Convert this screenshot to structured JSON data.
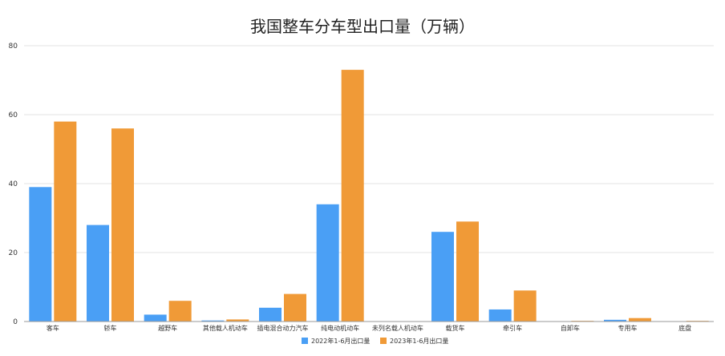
{
  "chart_data": {
    "type": "bar",
    "title": "我国整车分车型出口量（万辆）",
    "xlabel": "",
    "ylabel": "",
    "ylim": [
      0,
      80
    ],
    "yticks": [
      0,
      20,
      40,
      60,
      80
    ],
    "grid": true,
    "legend_position": "bottom",
    "categories": [
      "客车",
      "轿车",
      "越野车",
      "其他载人机动车",
      "插电混合动力汽车",
      "纯电动机动车",
      "未列名载人机动车",
      "载货车",
      "牵引车",
      "自卸车",
      "专用车",
      "底盘"
    ],
    "series": [
      {
        "name": "2022年1-6月出口量",
        "color": "#4a9ff5",
        "values": [
          39,
          28,
          2,
          0.3,
          4,
          34,
          0,
          26,
          3.5,
          0.1,
          0.5,
          0.1
        ]
      },
      {
        "name": "2023年1-6月出口量",
        "color": "#f09a37",
        "values": [
          58,
          56,
          6,
          0.6,
          8,
          73,
          0.1,
          29,
          9,
          0.2,
          1,
          0.2
        ]
      }
    ]
  }
}
